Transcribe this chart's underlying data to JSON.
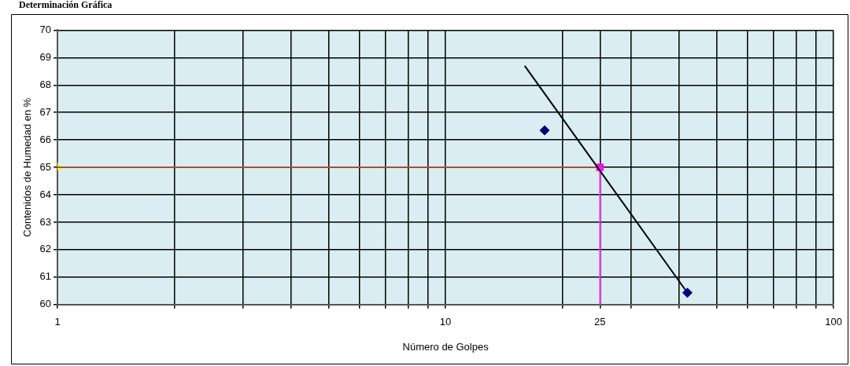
{
  "chart_data": {
    "type": "scatter",
    "title": "Determinación Gráfica",
    "xlabel": "Número de Golpes",
    "ylabel": "Contenidos de Humedad en %",
    "log": "x",
    "xlim": [
      1,
      100
    ],
    "ylim": [
      60,
      70
    ],
    "xticks": [
      1,
      {
        "value": 2,
        "label": null
      },
      {
        "value": 3,
        "label": null
      },
      {
        "value": 4,
        "label": null
      },
      {
        "value": 5,
        "label": null
      },
      {
        "value": 6,
        "label": null
      },
      {
        "value": 7,
        "label": null
      },
      {
        "value": 8,
        "label": null
      },
      {
        "value": 9,
        "label": null
      },
      10,
      {
        "value": 20,
        "label": null
      },
      25,
      {
        "value": 30,
        "label": null
      },
      {
        "value": 40,
        "label": null
      },
      {
        "value": 50,
        "label": null
      },
      {
        "value": 60,
        "label": null
      },
      {
        "value": 70,
        "label": null
      },
      {
        "value": 80,
        "label": null
      },
      {
        "value": 90,
        "label": null
      },
      100
    ],
    "yticks": [
      60,
      61,
      62,
      63,
      64,
      65,
      66,
      67,
      68,
      69,
      70
    ],
    "grid": true,
    "legend": false,
    "series": [
      {
        "marker": "diamond",
        "color": "#000080",
        "x": [
          18,
          42
        ],
        "values": [
          66.35,
          60.43
        ]
      },
      {
        "type": "line",
        "marker": "none",
        "color": "#000000",
        "x": [
          16,
          42
        ],
        "values": [
          68.7,
          60.43
        ]
      },
      {
        "type": "line",
        "marker": "none",
        "color": "#ff33ff",
        "x": [
          25,
          25
        ],
        "values": [
          60,
          65
        ]
      },
      {
        "type": "line",
        "marker": "none",
        "color": "#a0522d",
        "x": [
          1,
          25
        ],
        "values": [
          65,
          65
        ]
      },
      {
        "marker": "square",
        "color": "#ff00ff",
        "x": [
          25
        ],
        "values": [
          65
        ]
      },
      {
        "marker": "triangle",
        "color": "#ffff00",
        "x": [
          1
        ],
        "values": [
          65
        ]
      }
    ]
  }
}
